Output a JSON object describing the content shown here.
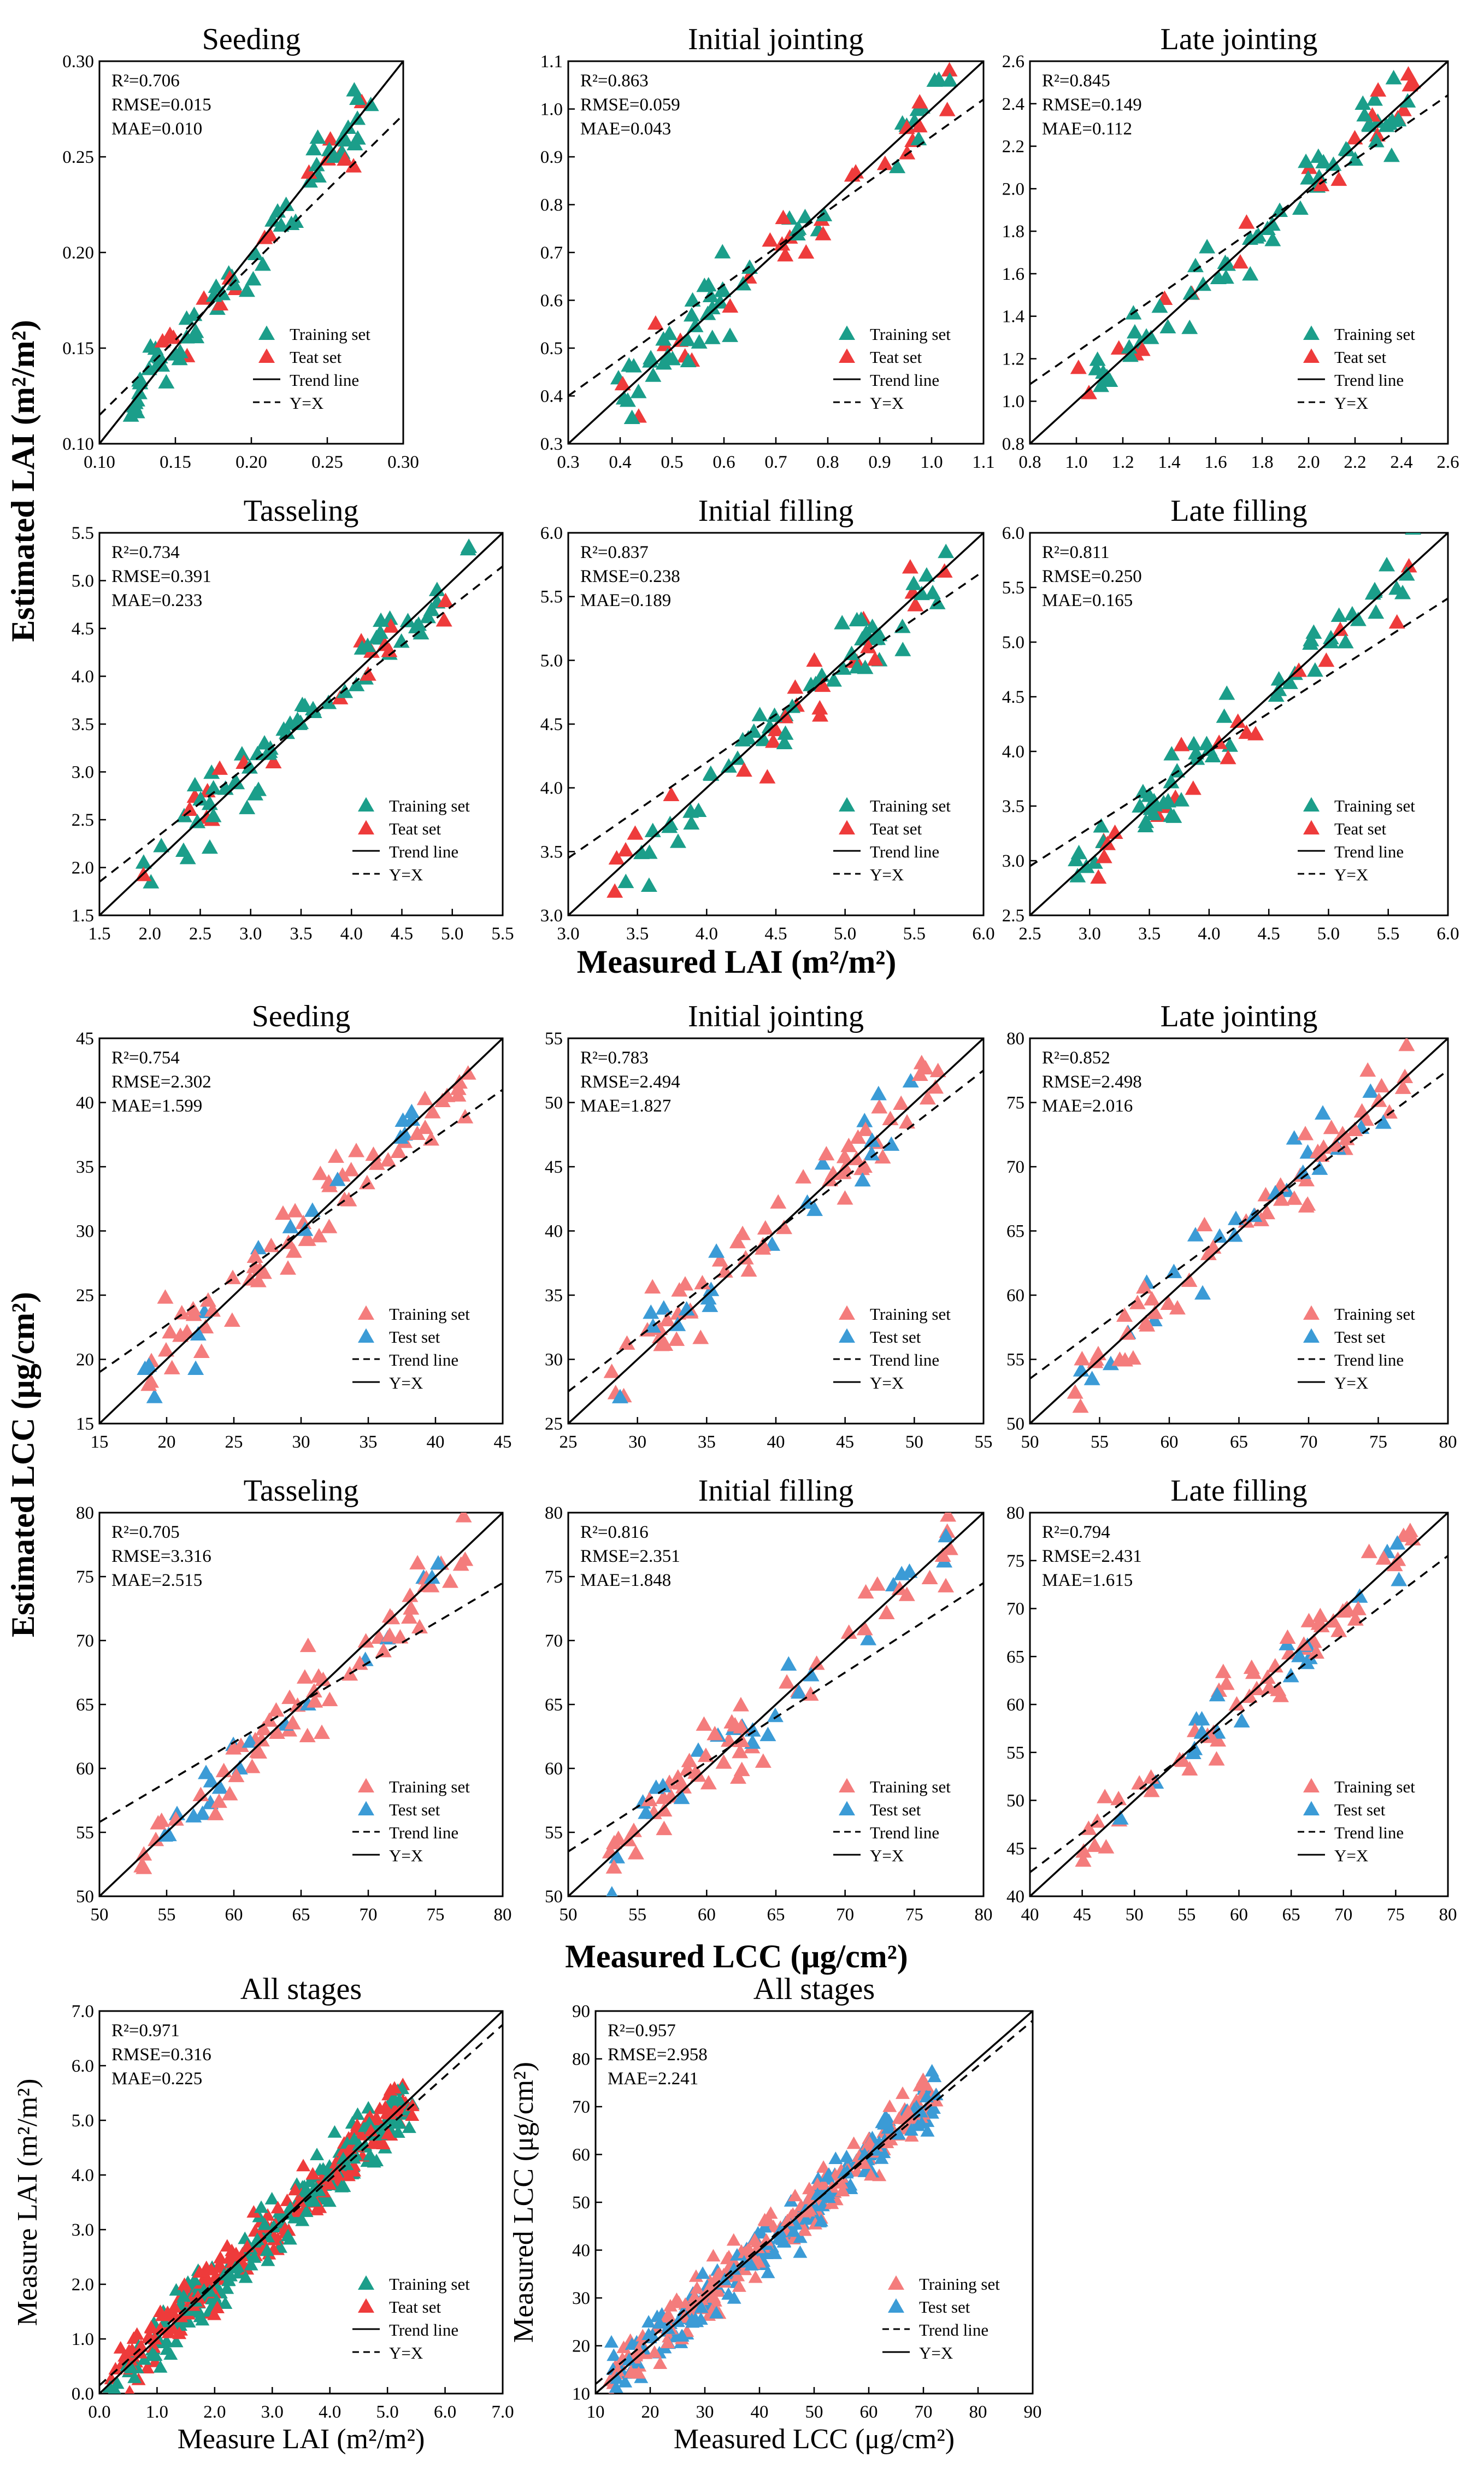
{
  "figure": {
    "labels": {
      "lai_ylabel": "Estimated LAI (m²/m²)",
      "lai_xlabel": "Measured LAI (m²/m²)",
      "lcc_ylabel": "Estimated LCC (μg/cm²)",
      "lcc_xlabel": "Measured LCC (μg/cm²)"
    }
  },
  "chart_data": [
    {
      "type": "scatter",
      "title": "Seeding",
      "xlim": [
        0.1,
        0.3
      ],
      "ylim": [
        0.1,
        0.3
      ],
      "xticks": [
        0.1,
        0.15,
        0.2,
        0.25,
        0.3
      ],
      "yticks": [
        0.1,
        0.15,
        0.2,
        0.25,
        0.3
      ],
      "dec": 2,
      "stats": {
        "r2": "0.706",
        "rmse": "0.015",
        "mae": "0.010"
      },
      "series": [
        {
          "name": "Training set",
          "color": "#1b9e8a"
        },
        {
          "name": "Teat set",
          "color": "#ee3b3b"
        }
      ],
      "legend": [
        "Training set",
        "Teat set",
        "Trend line",
        "Y=X"
      ],
      "trend": [
        0.115,
        0.272
      ],
      "fill": true
    },
    {
      "type": "scatter",
      "title": "Initial jointing",
      "xlim": [
        0.3,
        1.1
      ],
      "ylim": [
        0.3,
        1.1
      ],
      "xticks": [
        0.3,
        0.4,
        0.5,
        0.6,
        0.7,
        0.8,
        0.9,
        1.0,
        1.1
      ],
      "yticks": [
        0.3,
        0.4,
        0.5,
        0.6,
        0.7,
        0.8,
        0.9,
        1.0,
        1.1
      ],
      "dec": 1,
      "stats": {
        "r2": "0.863",
        "rmse": "0.059",
        "mae": "0.043"
      },
      "series": [
        {
          "name": "Training set",
          "color": "#1b9e8a"
        },
        {
          "name": "Teat set",
          "color": "#ee3b3b"
        }
      ],
      "legend": [
        "Training set",
        "Teat set",
        "Trend line",
        "Y=X"
      ],
      "trend": [
        0.4,
        1.02
      ],
      "fill": true
    },
    {
      "type": "scatter",
      "title": "Late jointing",
      "xlim": [
        0.8,
        2.6
      ],
      "ylim": [
        0.8,
        2.6
      ],
      "xticks": [
        0.8,
        1.0,
        1.2,
        1.4,
        1.6,
        1.8,
        2.0,
        2.2,
        2.4,
        2.6
      ],
      "yticks": [
        0.8,
        1.0,
        1.2,
        1.4,
        1.6,
        1.8,
        2.0,
        2.2,
        2.4,
        2.6
      ],
      "dec": 1,
      "stats": {
        "r2": "0.845",
        "rmse": "0.149",
        "mae": "0.112"
      },
      "series": [
        {
          "name": "Training set",
          "color": "#1b9e8a"
        },
        {
          "name": "Teat set",
          "color": "#ee3b3b"
        }
      ],
      "legend": [
        "Training set",
        "Teat set",
        "Trend line",
        "Y=X"
      ],
      "trend": [
        1.08,
        2.44
      ],
      "fill": true
    },
    {
      "type": "scatter",
      "title": "Tasseling",
      "xlim": [
        1.5,
        5.5
      ],
      "ylim": [
        1.5,
        5.5
      ],
      "xticks": [
        1.5,
        2.0,
        2.5,
        3.0,
        3.5,
        4.0,
        4.5,
        5.0,
        5.5
      ],
      "yticks": [
        1.5,
        2.0,
        2.5,
        3.0,
        3.5,
        4.0,
        4.5,
        5.0,
        5.5
      ],
      "dec": 1,
      "stats": {
        "r2": "0.734",
        "rmse": "0.391",
        "mae": "0.233"
      },
      "series": [
        {
          "name": "Training set",
          "color": "#1b9e8a"
        },
        {
          "name": "Teat set",
          "color": "#ee3b3b"
        }
      ],
      "legend": [
        "Training set",
        "Teat set",
        "Trend line",
        "Y=X"
      ],
      "trend": [
        1.85,
        5.15
      ],
      "fill": true
    },
    {
      "type": "scatter",
      "title": "Initial filling",
      "xlim": [
        3.0,
        6.0
      ],
      "ylim": [
        3.0,
        6.0
      ],
      "xticks": [
        3.0,
        3.5,
        4.0,
        4.5,
        5.0,
        5.5,
        6.0
      ],
      "yticks": [
        3.0,
        3.5,
        4.0,
        4.5,
        5.0,
        5.5,
        6.0
      ],
      "dec": 1,
      "stats": {
        "r2": "0.837",
        "rmse": "0.238",
        "mae": "0.189"
      },
      "series": [
        {
          "name": "Training set",
          "color": "#1b9e8a"
        },
        {
          "name": "Teat set",
          "color": "#ee3b3b"
        }
      ],
      "legend": [
        "Training set",
        "Teat set",
        "Trend line",
        "Y=X"
      ],
      "trend": [
        3.45,
        5.7
      ],
      "fill": true
    },
    {
      "type": "scatter",
      "title": "Late filling",
      "xlim": [
        2.5,
        6.0
      ],
      "ylim": [
        2.5,
        6.0
      ],
      "xticks": [
        2.5,
        3.0,
        3.5,
        4.0,
        4.5,
        5.0,
        5.5,
        6.0
      ],
      "yticks": [
        2.5,
        3.0,
        3.5,
        4.0,
        4.5,
        5.0,
        5.5,
        6.0
      ],
      "dec": 1,
      "stats": {
        "r2": "0.811",
        "rmse": "0.250",
        "mae": "0.165"
      },
      "series": [
        {
          "name": "Training set",
          "color": "#1b9e8a"
        },
        {
          "name": "Teat set",
          "color": "#ee3b3b"
        }
      ],
      "legend": [
        "Training set",
        "Teat set",
        "Trend line",
        "Y=X"
      ],
      "trend": [
        2.95,
        5.4
      ],
      "fill": true
    },
    {
      "type": "scatter",
      "title": "Seeding",
      "xlim": [
        15,
        45
      ],
      "ylim": [
        15,
        45
      ],
      "xticks": [
        15,
        20,
        25,
        30,
        35,
        40,
        45
      ],
      "yticks": [
        15,
        20,
        25,
        30,
        35,
        40,
        45
      ],
      "dec": 0,
      "stats": {
        "r2": "0.754",
        "rmse": "2.302",
        "mae": "1.599"
      },
      "series": [
        {
          "name": "Training set",
          "color": "#f47c7c"
        },
        {
          "name": "Test set",
          "color": "#3b9bd6"
        }
      ],
      "legend": [
        "Training set",
        "Test set",
        "Trend line",
        "Y=X"
      ],
      "trend": [
        19,
        41
      ],
      "fill": false
    },
    {
      "type": "scatter",
      "title": "Initial jointing",
      "xlim": [
        25,
        55
      ],
      "ylim": [
        25,
        55
      ],
      "xticks": [
        25,
        30,
        35,
        40,
        45,
        50,
        55
      ],
      "yticks": [
        25,
        30,
        35,
        40,
        45,
        50,
        55
      ],
      "dec": 0,
      "stats": {
        "r2": "0.783",
        "rmse": "2.494",
        "mae": "1.827"
      },
      "series": [
        {
          "name": "Training set",
          "color": "#f47c7c"
        },
        {
          "name": "Test set",
          "color": "#3b9bd6"
        }
      ],
      "legend": [
        "Training set",
        "Test set",
        "Trend line",
        "Y=X"
      ],
      "trend": [
        27.5,
        52.5
      ],
      "fill": false
    },
    {
      "type": "scatter",
      "title": "Late jointing",
      "xlim": [
        50,
        80
      ],
      "ylim": [
        50,
        80
      ],
      "xticks": [
        50,
        55,
        60,
        65,
        70,
        75,
        80
      ],
      "yticks": [
        50,
        55,
        60,
        65,
        70,
        75,
        80
      ],
      "dec": 0,
      "stats": {
        "r2": "0.852",
        "rmse": "2.498",
        "mae": "2.016"
      },
      "series": [
        {
          "name": "Training set",
          "color": "#f47c7c"
        },
        {
          "name": "Test set",
          "color": "#3b9bd6"
        }
      ],
      "legend": [
        "Training set",
        "Test set",
        "Trend line",
        "Y=X"
      ],
      "trend": [
        53.5,
        77.5
      ],
      "fill": false
    },
    {
      "type": "scatter",
      "title": "Tasseling",
      "xlim": [
        50,
        80
      ],
      "ylim": [
        50,
        80
      ],
      "xticks": [
        50,
        55,
        60,
        65,
        70,
        75,
        80
      ],
      "yticks": [
        50,
        55,
        60,
        65,
        70,
        75,
        80
      ],
      "dec": 0,
      "stats": {
        "r2": "0.705",
        "rmse": "3.316",
        "mae": "2.515"
      },
      "series": [
        {
          "name": "Training set",
          "color": "#f47c7c"
        },
        {
          "name": "Test set",
          "color": "#3b9bd6"
        }
      ],
      "legend": [
        "Training set",
        "Test set",
        "Trend line",
        "Y=X"
      ],
      "trend": [
        55.8,
        74.5
      ],
      "fill": false
    },
    {
      "type": "scatter",
      "title": "Initial filling",
      "xlim": [
        50,
        80
      ],
      "ylim": [
        50,
        80
      ],
      "xticks": [
        50,
        55,
        60,
        65,
        70,
        75,
        80
      ],
      "yticks": [
        50,
        55,
        60,
        65,
        70,
        75,
        80
      ],
      "dec": 0,
      "stats": {
        "r2": "0.816",
        "rmse": "2.351",
        "mae": "1.848"
      },
      "series": [
        {
          "name": "Training set",
          "color": "#f47c7c"
        },
        {
          "name": "Test set",
          "color": "#3b9bd6"
        }
      ],
      "legend": [
        "Training set",
        "Test set",
        "Trend line",
        "Y=X"
      ],
      "trend": [
        53.5,
        74.5
      ],
      "fill": false
    },
    {
      "type": "scatter",
      "title": "Late filling",
      "xlim": [
        40,
        80
      ],
      "ylim": [
        40,
        80
      ],
      "xticks": [
        40,
        45,
        50,
        55,
        60,
        65,
        70,
        75,
        80
      ],
      "yticks": [
        40,
        45,
        50,
        55,
        60,
        65,
        70,
        75,
        80
      ],
      "dec": 0,
      "stats": {
        "r2": "0.794",
        "rmse": "2.431",
        "mae": "1.615"
      },
      "series": [
        {
          "name": "Training set",
          "color": "#f47c7c"
        },
        {
          "name": "Test set",
          "color": "#3b9bd6"
        }
      ],
      "legend": [
        "Training set",
        "Test set",
        "Trend line",
        "Y=X"
      ],
      "trend": [
        42.5,
        75.5
      ],
      "fill": false
    },
    {
      "type": "scatter",
      "title": "All stages",
      "xlabel": "Measure LAI (m²/m²)",
      "ylabel": "Measure LAI (m²/m²)",
      "xlim": [
        0,
        7
      ],
      "ylim": [
        0,
        7
      ],
      "xticks": [
        0,
        1,
        2,
        3,
        4,
        5,
        6,
        7
      ],
      "yticks": [
        0,
        1,
        2,
        3,
        4,
        5,
        6,
        7
      ],
      "dec": 1,
      "stats": {
        "r2": "0.971",
        "rmse": "0.316",
        "mae": "0.225"
      },
      "series": [
        {
          "name": "Training set",
          "color": "#1b9e8a"
        },
        {
          "name": "Teat set",
          "color": "#ee3b3b"
        }
      ],
      "legend": [
        "Training set",
        "Teat set",
        "Trend line",
        "Y=X"
      ],
      "trend": [
        0.15,
        6.75
      ],
      "fill": true
    },
    {
      "type": "scatter",
      "title": "All stages",
      "xlabel": "Measured LCC (μg/cm²)",
      "ylabel": "Measured LCC (μg/cm²)",
      "xlim": [
        10,
        90
      ],
      "ylim": [
        10,
        90
      ],
      "xticks": [
        10,
        20,
        30,
        40,
        50,
        60,
        70,
        80,
        90
      ],
      "yticks": [
        10,
        20,
        30,
        40,
        50,
        60,
        70,
        80,
        90
      ],
      "dec": 0,
      "stats": {
        "r2": "0.957",
        "rmse": "2.958",
        "mae": "2.241"
      },
      "series": [
        {
          "name": "Training set",
          "color": "#f47c7c"
        },
        {
          "name": "Test set",
          "color": "#3b9bd6"
        }
      ],
      "legend": [
        "Training set",
        "Test set",
        "Trend line",
        "Y=X"
      ],
      "trend": [
        12,
        88
      ],
      "fill": false
    }
  ]
}
